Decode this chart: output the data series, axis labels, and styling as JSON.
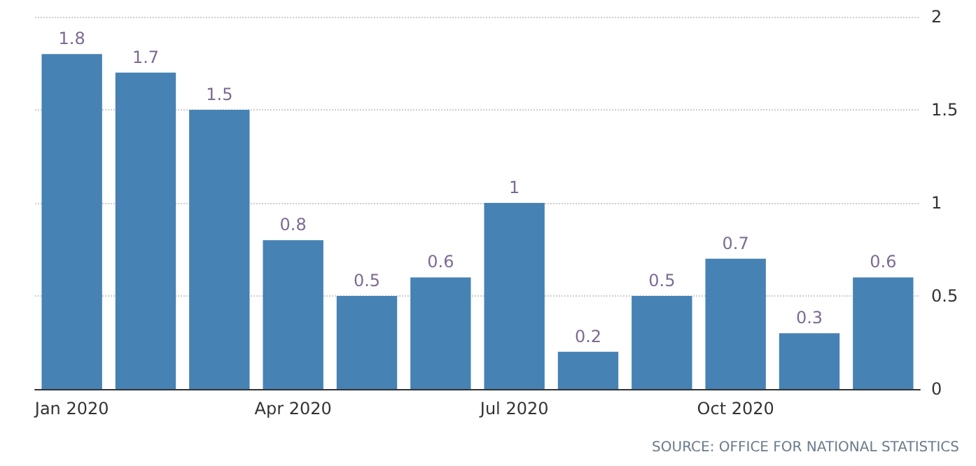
{
  "chart_data": {
    "type": "bar",
    "categories": [
      "Jan 2020",
      null,
      null,
      "Apr 2020",
      null,
      null,
      "Jul 2020",
      null,
      null,
      "Oct 2020",
      null,
      null
    ],
    "values": [
      1.8,
      1.7,
      1.5,
      0.8,
      0.5,
      0.6,
      1,
      0.2,
      0.5,
      0.7,
      0.3,
      0.6
    ],
    "color": "#4682b4",
    "ylim": [
      0,
      2
    ],
    "yticks": [
      0,
      0.5,
      1,
      1.5,
      2
    ],
    "grid": "y",
    "data_labels": true,
    "annotations": [
      "SOURCE: OFFICE FOR NATIONAL STATISTICS"
    ]
  }
}
